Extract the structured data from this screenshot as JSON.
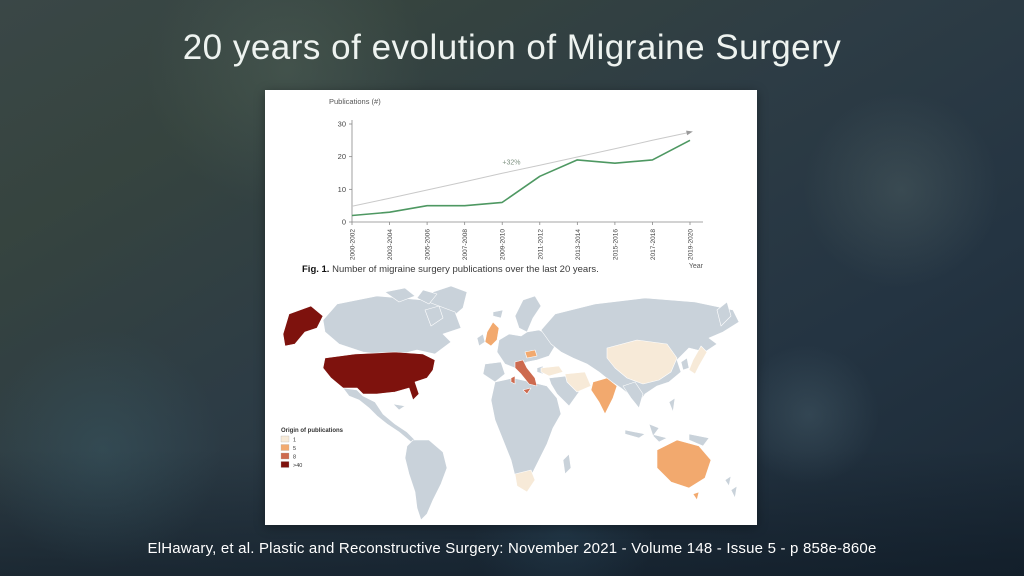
{
  "slide": {
    "title": "20 years of evolution of Migraine Surgery",
    "citation": "ElHawary, et al. Plastic and Reconstructive Surgery: November 2021 - Volume 148 - Issue 5 - p 858e-860e"
  },
  "figure": {
    "caption_prefix": "Fig. 1.",
    "caption_text": " Number of migraine surgery publications over the last 20 years."
  },
  "chart_data": [
    {
      "type": "line",
      "title": "Number of migraine surgery publications over the last 20 years",
      "ylabel": "Publications (#)",
      "xlabel": "Year",
      "categories": [
        "2000-2002",
        "2003-2004",
        "2005-2006",
        "2007-2008",
        "2009-2010",
        "2011-2012",
        "2013-2014",
        "2015-2016",
        "2017-2018",
        "2019-2020"
      ],
      "series": [
        {
          "name": "Migraine surgery publications",
          "color": "#4e9862",
          "width": 1.6,
          "values": [
            2,
            3,
            5,
            5,
            6,
            14,
            19,
            18,
            19,
            25
          ]
        },
        {
          "name": "Linear trend",
          "color": "#c9c9c9",
          "width": 1,
          "arrow": true,
          "values": [
            4.8,
            7.3,
            9.8,
            12.3,
            14.9,
            17.4,
            19.9,
            22.4,
            25.0,
            27.5
          ]
        }
      ],
      "annotation": "+32%",
      "annotation_color": "#7d9180",
      "ylim": [
        0,
        30
      ],
      "yticks": [
        0,
        10,
        20,
        30
      ],
      "grid": false,
      "legend_position": "none"
    },
    {
      "type": "choropleth-map",
      "legend_title": "Origin of publications",
      "legend": [
        {
          "label": "1",
          "color": "#f7ead8"
        },
        {
          "label": "5",
          "color": "#f2a96e"
        },
        {
          "label": "8",
          "color": "#cd6a4f"
        },
        {
          "label": ">40",
          "color": "#7e120d"
        }
      ],
      "base_color": "#c9d2da",
      "countries": [
        {
          "name": "United States",
          "value": ">40"
        },
        {
          "name": "Italy",
          "value": "8"
        },
        {
          "name": "United Kingdom",
          "value": "5"
        },
        {
          "name": "India",
          "value": "5"
        },
        {
          "name": "Australia",
          "value": "5"
        },
        {
          "name": "Austria",
          "value": "5"
        },
        {
          "name": "China",
          "value": "1"
        },
        {
          "name": "Japan",
          "value": "1"
        },
        {
          "name": "Turkey",
          "value": "1"
        },
        {
          "name": "Iran",
          "value": "1"
        },
        {
          "name": "South Africa",
          "value": "1"
        }
      ]
    }
  ]
}
